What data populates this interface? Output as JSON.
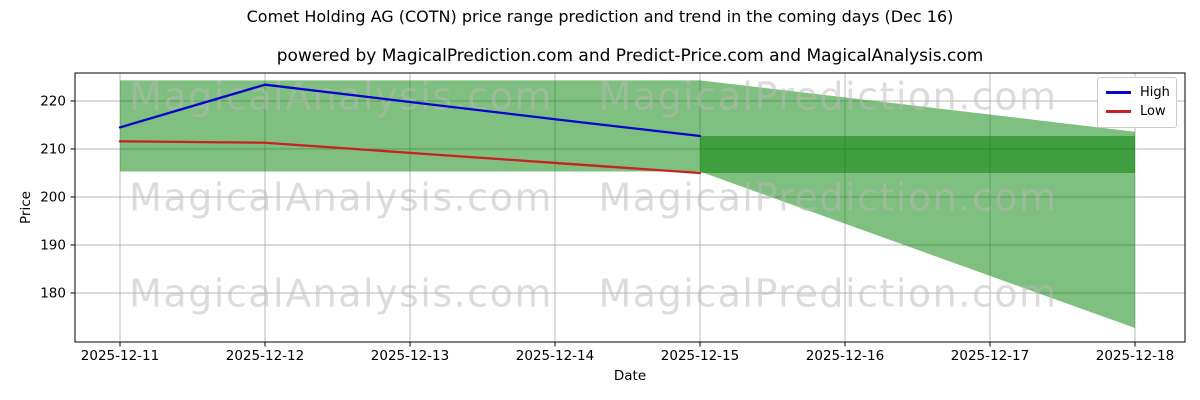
{
  "header": {
    "title": "Comet Holding AG (COTN) price range prediction and trend in the coming days (Dec 16)",
    "subtitle": "powered by MagicalPrediction.com and Predict-Price.com and MagicalAnalysis.com"
  },
  "legend": [
    {
      "label": "High",
      "color": "#0505cc"
    },
    {
      "label": "Low",
      "color": "#c82121"
    }
  ],
  "watermarks": {
    "left_text": "MagicalAnalysis.com",
    "right_text": "MagicalPrediction.com",
    "color": "rgba(185,185,185,0.5)"
  },
  "chart_data": {
    "type": "line",
    "title": "Comet Holding AG (COTN) price range prediction and trend in the coming days (Dec 16)",
    "xlabel": "Date",
    "ylabel": "Price",
    "x": [
      "2025-12-11",
      "2025-12-12",
      "2025-12-13",
      "2025-12-14",
      "2025-12-15"
    ],
    "series": [
      {
        "name": "High",
        "color": "#0505cc",
        "values": [
          214.5,
          223.4,
          219.8,
          216.2,
          212.7
        ]
      },
      {
        "name": "Low",
        "color": "#c82121",
        "values": [
          211.6,
          211.3,
          209.2,
          207.1,
          205.0
        ]
      }
    ],
    "bands": {
      "fill_color": "rgba(0,128,0,0.5)",
      "history": {
        "x_start": "2025-12-11",
        "x_end": "2025-12-15",
        "top": 224.3,
        "bottom": 205.3
      },
      "forecast": {
        "x_start": "2025-12-15",
        "x_end": "2025-12-18",
        "top_start": 224.3,
        "top_end": 213.6,
        "bottom_start": 205.3,
        "bottom_end": 172.7
      },
      "prediction_range": {
        "x_start": "2025-12-15",
        "x_end": "2025-12-18",
        "top": 212.7,
        "bottom": 205.0
      }
    },
    "xticks": [
      "2025-12-11",
      "2025-12-12",
      "2025-12-13",
      "2025-12-14",
      "2025-12-15",
      "2025-12-16",
      "2025-12-17",
      "2025-12-18"
    ],
    "yticks": [
      180,
      190,
      200,
      210,
      220
    ],
    "ylim": [
      169.8,
      225.9
    ],
    "grid": true,
    "grid_color": "#b4b4b4",
    "legend_position": "upper right"
  }
}
